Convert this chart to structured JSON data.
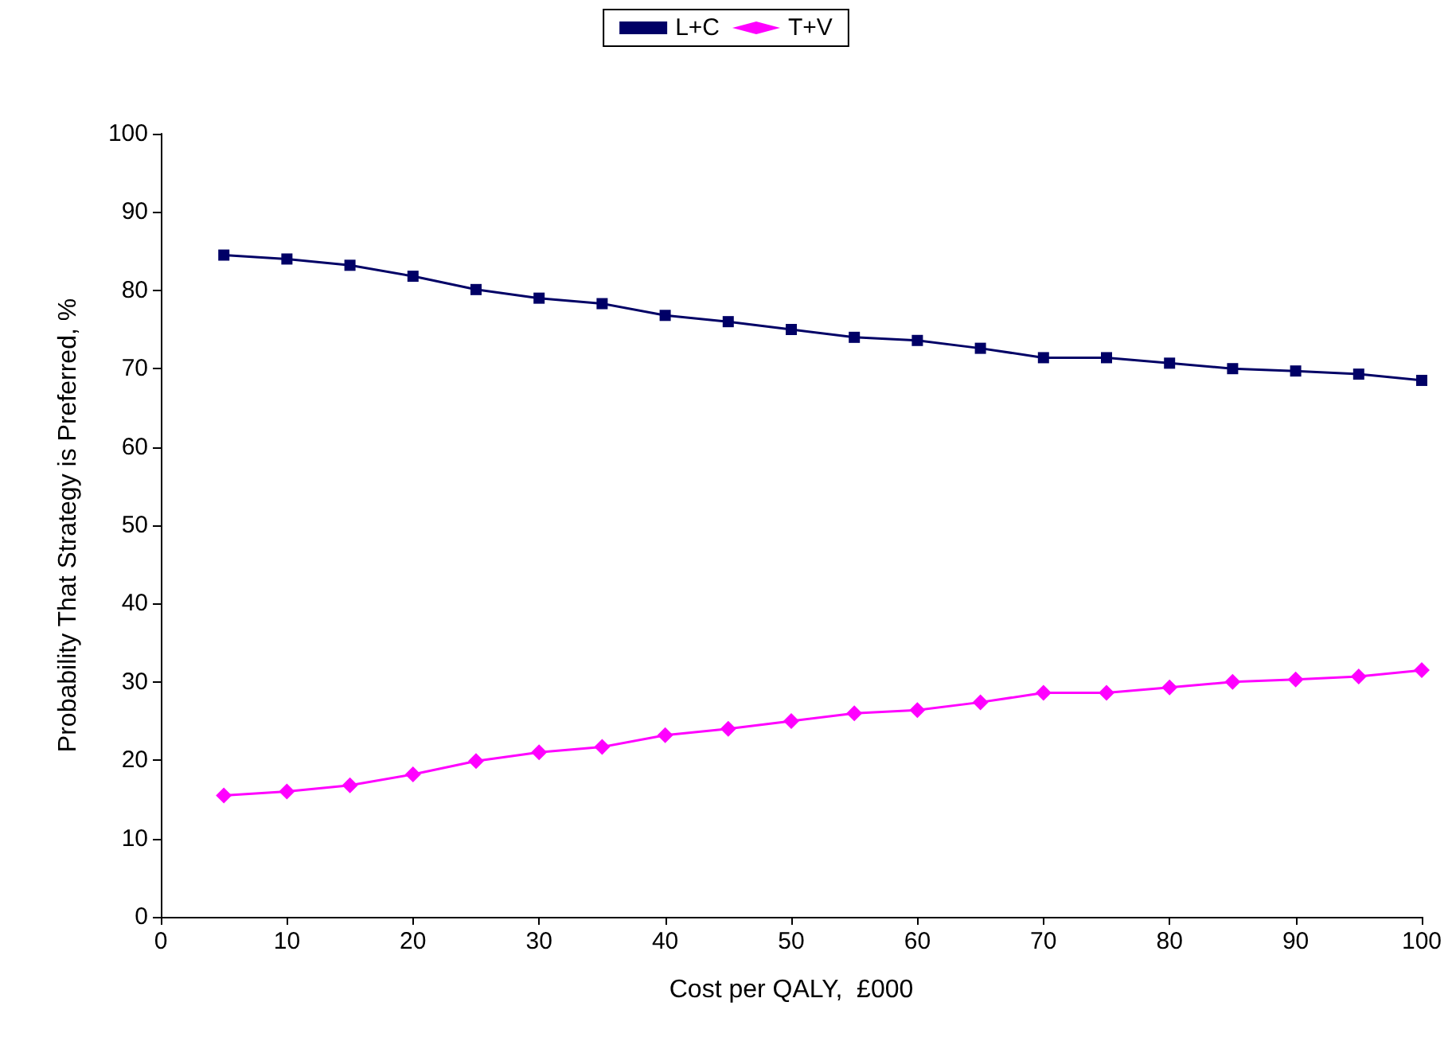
{
  "chart_data": {
    "type": "line",
    "xlabel": "Cost per QALY,  £000",
    "ylabel": "Probability That Strategy is Preferred, %",
    "x": [
      5,
      10,
      15,
      20,
      25,
      30,
      35,
      40,
      45,
      50,
      55,
      60,
      65,
      70,
      75,
      80,
      85,
      90,
      95,
      100
    ],
    "series": [
      {
        "name": "L+C",
        "color": "#000066",
        "marker": "square",
        "values": [
          84.5,
          84.0,
          83.2,
          81.8,
          80.1,
          79.0,
          78.3,
          76.8,
          76.0,
          75.0,
          74.0,
          73.6,
          72.6,
          71.4,
          71.4,
          70.7,
          70.0,
          69.7,
          69.3,
          68.5
        ]
      },
      {
        "name": "T+V",
        "color": "#ff00ff",
        "marker": "diamond",
        "values": [
          15.5,
          16.0,
          16.8,
          18.2,
          19.9,
          21.0,
          21.7,
          23.2,
          24.0,
          25.0,
          26.0,
          26.4,
          27.4,
          28.6,
          28.6,
          29.3,
          30.0,
          30.3,
          30.7,
          31.5
        ]
      }
    ],
    "xlim": [
      0,
      100
    ],
    "xticks": [
      0,
      10,
      20,
      30,
      40,
      50,
      60,
      70,
      80,
      90,
      100
    ],
    "ylim": [
      0,
      100
    ],
    "yticks": [
      0,
      10,
      20,
      30,
      40,
      50,
      60,
      70,
      80,
      90,
      100
    ],
    "grid": false,
    "legend": "top",
    "line_style": "solid"
  }
}
